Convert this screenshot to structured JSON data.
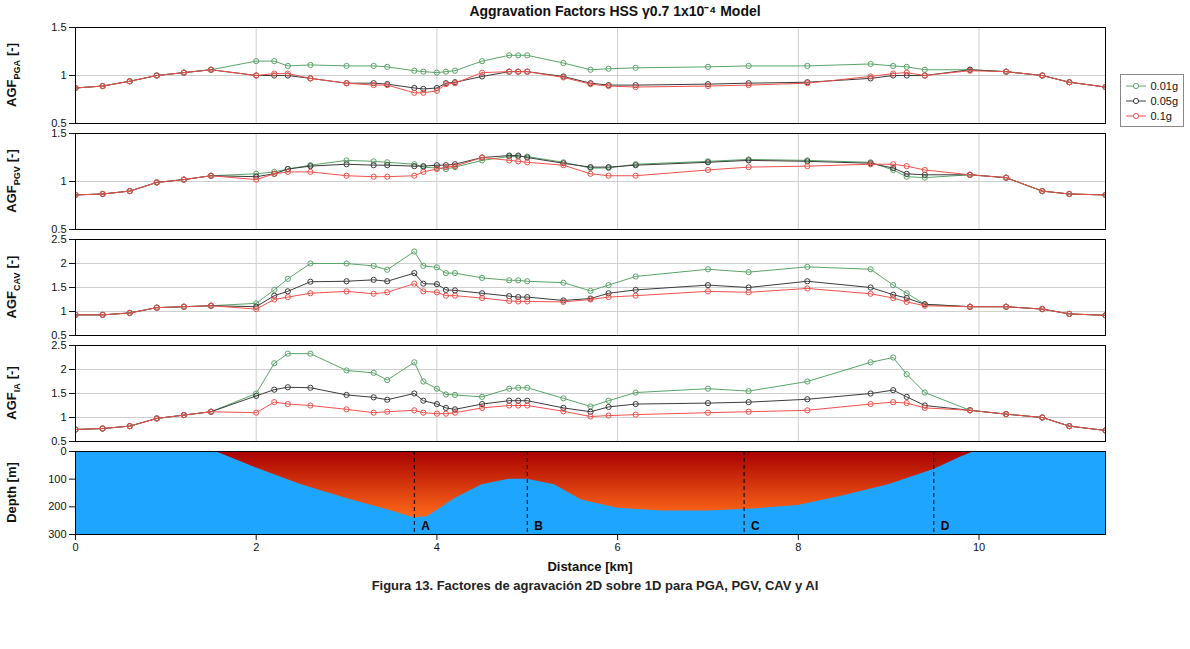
{
  "title": "Aggravation Factors HSS γ0.7 1x10⁻⁴ Model",
  "caption": "Figura 13. Factores de agravación 2D sobre 1D para PGA, PGV, CAV y AI",
  "chart_data": [
    {
      "type": "line",
      "ylabel": {
        "text": "AGF",
        "subscript": "PGA",
        "unit": "[-]"
      },
      "x": [
        0,
        0.3,
        0.6,
        0.9,
        1.2,
        1.5,
        2.0,
        2.2,
        2.35,
        2.6,
        3.0,
        3.3,
        3.45,
        3.75,
        3.85,
        4.0,
        4.1,
        4.2,
        4.5,
        4.8,
        4.9,
        5.0,
        5.4,
        5.7,
        5.9,
        6.2,
        7.0,
        7.45,
        8.1,
        8.8,
        9.05,
        9.2,
        9.4,
        9.9,
        10.3,
        10.7,
        11.0,
        11.4
      ],
      "series": [
        {
          "name": "0.01g",
          "color": "#5aa469",
          "marker": "circle",
          "values": [
            0.87,
            0.89,
            0.94,
            1.0,
            1.03,
            1.06,
            1.15,
            1.15,
            1.1,
            1.11,
            1.1,
            1.1,
            1.09,
            1.05,
            1.04,
            1.03,
            1.04,
            1.05,
            1.15,
            1.21,
            1.21,
            1.21,
            1.13,
            1.06,
            1.07,
            1.08,
            1.09,
            1.1,
            1.1,
            1.12,
            1.1,
            1.09,
            1.06,
            1.06,
            1.04,
            1.0,
            0.93,
            0.88
          ]
        },
        {
          "name": "0.05g",
          "color": "#3c3c3c",
          "marker": "circle",
          "values": [
            0.87,
            0.89,
            0.94,
            1.0,
            1.03,
            1.06,
            1.0,
            1.0,
            1.0,
            0.97,
            0.92,
            0.92,
            0.91,
            0.87,
            0.86,
            0.87,
            0.92,
            0.93,
            0.99,
            1.04,
            1.04,
            1.04,
            0.99,
            0.92,
            0.9,
            0.9,
            0.91,
            0.92,
            0.93,
            0.97,
            1.0,
            1.0,
            1.0,
            1.06,
            1.04,
            1.0,
            0.93,
            0.88
          ]
        },
        {
          "name": "0.1g",
          "color": "#f0504a",
          "marker": "circle",
          "values": [
            0.87,
            0.89,
            0.94,
            1.0,
            1.03,
            1.06,
            1.0,
            1.02,
            1.02,
            0.97,
            0.92,
            0.9,
            0.9,
            0.82,
            0.82,
            0.84,
            0.91,
            0.92,
            1.03,
            1.04,
            1.04,
            1.04,
            0.98,
            0.91,
            0.89,
            0.88,
            0.89,
            0.9,
            0.92,
            0.99,
            1.02,
            1.03,
            1.0,
            1.05,
            1.04,
            1.0,
            0.93,
            0.88
          ]
        }
      ],
      "xlim": [
        0,
        11.4
      ],
      "xticks": [
        0,
        2,
        4,
        6,
        8,
        10
      ],
      "ylim": [
        0.5,
        1.5
      ],
      "yticks": [
        0.5,
        1,
        1.5
      ],
      "grid": true,
      "tick_labels": "y",
      "legend": "right"
    },
    {
      "type": "line",
      "ylabel": {
        "text": "AGF",
        "subscript": "PGV",
        "unit": "[-]"
      },
      "x": [
        0,
        0.3,
        0.6,
        0.9,
        1.2,
        1.5,
        2.0,
        2.2,
        2.35,
        2.6,
        3.0,
        3.3,
        3.45,
        3.75,
        3.85,
        4.0,
        4.1,
        4.2,
        4.5,
        4.8,
        4.9,
        5.0,
        5.4,
        5.7,
        5.9,
        6.2,
        7.0,
        7.45,
        8.1,
        8.8,
        9.05,
        9.2,
        9.4,
        9.9,
        10.3,
        10.7,
        11.0,
        11.4
      ],
      "series": [
        {
          "name": "0.01g",
          "color": "#5aa469",
          "marker": "circle",
          "values": [
            0.86,
            0.87,
            0.9,
            0.99,
            1.02,
            1.06,
            1.08,
            1.1,
            1.13,
            1.17,
            1.22,
            1.21,
            1.2,
            1.18,
            1.15,
            1.14,
            1.13,
            1.15,
            1.22,
            1.26,
            1.26,
            1.26,
            1.2,
            1.14,
            1.14,
            1.18,
            1.21,
            1.23,
            1.22,
            1.2,
            1.12,
            1.05,
            1.04,
            1.07,
            1.04,
            0.9,
            0.87,
            0.86
          ]
        },
        {
          "name": "0.05g",
          "color": "#3c3c3c",
          "marker": "circle",
          "values": [
            0.86,
            0.87,
            0.9,
            0.99,
            1.02,
            1.06,
            1.05,
            1.08,
            1.13,
            1.16,
            1.18,
            1.17,
            1.17,
            1.16,
            1.16,
            1.17,
            1.17,
            1.18,
            1.25,
            1.27,
            1.27,
            1.25,
            1.19,
            1.15,
            1.15,
            1.17,
            1.2,
            1.22,
            1.21,
            1.19,
            1.14,
            1.08,
            1.07,
            1.07,
            1.04,
            0.9,
            0.87,
            0.86
          ]
        },
        {
          "name": "0.1g",
          "color": "#f0504a",
          "marker": "circle",
          "values": [
            0.86,
            0.87,
            0.9,
            0.99,
            1.02,
            1.06,
            1.02,
            1.08,
            1.1,
            1.1,
            1.06,
            1.05,
            1.05,
            1.06,
            1.1,
            1.13,
            1.15,
            1.16,
            1.25,
            1.22,
            1.21,
            1.2,
            1.17,
            1.08,
            1.06,
            1.06,
            1.12,
            1.15,
            1.16,
            1.18,
            1.18,
            1.16,
            1.12,
            1.07,
            1.04,
            0.9,
            0.87,
            0.86
          ]
        }
      ],
      "xlim": [
        0,
        11.4
      ],
      "xticks": [
        0,
        2,
        4,
        6,
        8,
        10
      ],
      "ylim": [
        0.5,
        1.5
      ],
      "yticks": [
        0.5,
        1,
        1.5
      ],
      "grid": true,
      "tick_labels": "y"
    },
    {
      "type": "line",
      "ylabel": {
        "text": "AGF",
        "subscript": "CAV",
        "unit": "[-]"
      },
      "x": [
        0,
        0.3,
        0.6,
        0.9,
        1.2,
        1.5,
        2.0,
        2.2,
        2.35,
        2.6,
        3.0,
        3.3,
        3.45,
        3.75,
        3.85,
        4.0,
        4.1,
        4.2,
        4.5,
        4.8,
        4.9,
        5.0,
        5.4,
        5.7,
        5.9,
        6.2,
        7.0,
        7.45,
        8.1,
        8.8,
        9.05,
        9.2,
        9.4,
        9.9,
        10.3,
        10.7,
        11.0,
        11.4
      ],
      "series": [
        {
          "name": "0.01g",
          "color": "#5aa469",
          "marker": "circle",
          "values": [
            0.93,
            0.93,
            0.97,
            1.08,
            1.1,
            1.12,
            1.17,
            1.45,
            1.68,
            2.0,
            2.0,
            1.95,
            1.87,
            2.25,
            1.95,
            1.92,
            1.8,
            1.8,
            1.7,
            1.65,
            1.65,
            1.63,
            1.6,
            1.43,
            1.55,
            1.73,
            1.88,
            1.82,
            1.93,
            1.88,
            1.55,
            1.38,
            1.15,
            1.1,
            1.1,
            1.05,
            0.95,
            0.92
          ]
        },
        {
          "name": "0.05g",
          "color": "#3c3c3c",
          "marker": "circle",
          "values": [
            0.93,
            0.93,
            0.97,
            1.08,
            1.1,
            1.12,
            1.1,
            1.33,
            1.42,
            1.62,
            1.63,
            1.66,
            1.63,
            1.8,
            1.58,
            1.57,
            1.45,
            1.44,
            1.38,
            1.32,
            1.3,
            1.3,
            1.23,
            1.27,
            1.38,
            1.45,
            1.55,
            1.5,
            1.63,
            1.5,
            1.35,
            1.28,
            1.15,
            1.1,
            1.1,
            1.05,
            0.95,
            0.92
          ]
        },
        {
          "name": "0.1g",
          "color": "#f0504a",
          "marker": "circle",
          "values": [
            0.93,
            0.93,
            0.97,
            1.08,
            1.1,
            1.12,
            1.05,
            1.25,
            1.3,
            1.38,
            1.42,
            1.37,
            1.4,
            1.58,
            1.42,
            1.4,
            1.33,
            1.33,
            1.28,
            1.22,
            1.21,
            1.21,
            1.2,
            1.25,
            1.3,
            1.33,
            1.42,
            1.4,
            1.48,
            1.37,
            1.28,
            1.2,
            1.12,
            1.1,
            1.1,
            1.05,
            0.95,
            0.92
          ]
        }
      ],
      "xlim": [
        0,
        11.4
      ],
      "xticks": [
        0,
        2,
        4,
        6,
        8,
        10
      ],
      "ylim": [
        0.5,
        2.5
      ],
      "yticks": [
        0.5,
        1,
        1.5,
        2,
        2.5
      ],
      "grid": true,
      "tick_labels": "y"
    },
    {
      "type": "line",
      "ylabel": {
        "text": "AGF",
        "subscript": "IA",
        "unit": "[-]"
      },
      "x": [
        0,
        0.3,
        0.6,
        0.9,
        1.2,
        1.5,
        2.0,
        2.2,
        2.35,
        2.6,
        3.0,
        3.3,
        3.45,
        3.75,
        3.85,
        4.0,
        4.1,
        4.2,
        4.5,
        4.8,
        4.9,
        5.0,
        5.4,
        5.7,
        5.9,
        6.2,
        7.0,
        7.45,
        8.1,
        8.8,
        9.05,
        9.2,
        9.4,
        9.9,
        10.3,
        10.7,
        11.0,
        11.4
      ],
      "series": [
        {
          "name": "0.01g",
          "color": "#5aa469",
          "marker": "circle",
          "values": [
            0.75,
            0.77,
            0.82,
            0.98,
            1.05,
            1.12,
            1.5,
            2.13,
            2.33,
            2.33,
            1.98,
            1.93,
            1.78,
            2.15,
            1.75,
            1.6,
            1.48,
            1.47,
            1.43,
            1.6,
            1.62,
            1.62,
            1.4,
            1.23,
            1.35,
            1.52,
            1.6,
            1.55,
            1.75,
            2.15,
            2.25,
            1.9,
            1.52,
            1.15,
            1.07,
            1.0,
            0.82,
            0.73
          ]
        },
        {
          "name": "0.05g",
          "color": "#3c3c3c",
          "marker": "circle",
          "values": [
            0.75,
            0.77,
            0.82,
            0.98,
            1.05,
            1.12,
            1.45,
            1.58,
            1.63,
            1.62,
            1.47,
            1.42,
            1.37,
            1.5,
            1.35,
            1.28,
            1.2,
            1.17,
            1.28,
            1.35,
            1.35,
            1.35,
            1.2,
            1.12,
            1.22,
            1.28,
            1.3,
            1.32,
            1.38,
            1.5,
            1.57,
            1.43,
            1.25,
            1.15,
            1.07,
            1.0,
            0.82,
            0.73
          ]
        },
        {
          "name": "0.1g",
          "color": "#f0504a",
          "marker": "circle",
          "values": [
            0.75,
            0.77,
            0.82,
            0.98,
            1.05,
            1.12,
            1.1,
            1.32,
            1.28,
            1.25,
            1.17,
            1.1,
            1.12,
            1.15,
            1.1,
            1.08,
            1.08,
            1.1,
            1.2,
            1.25,
            1.25,
            1.25,
            1.13,
            1.02,
            1.04,
            1.06,
            1.1,
            1.12,
            1.15,
            1.28,
            1.32,
            1.3,
            1.2,
            1.15,
            1.07,
            1.0,
            0.82,
            0.73
          ]
        }
      ],
      "xlim": [
        0,
        11.4
      ],
      "xticks": [
        0,
        2,
        4,
        6,
        8,
        10
      ],
      "ylim": [
        0.5,
        2.5
      ],
      "yticks": [
        0.5,
        1,
        1.5,
        2,
        2.5
      ],
      "grid": true,
      "tick_labels": "y"
    },
    {
      "type": "area",
      "ylabel": "Depth [m]",
      "xlabel": "Distance [km]",
      "x": [
        1.55,
        2.0,
        2.5,
        3.0,
        3.5,
        3.75,
        3.9,
        4.2,
        4.5,
        4.8,
        5.0,
        5.3,
        5.6,
        6.0,
        6.5,
        7.0,
        7.5,
        8.0,
        8.5,
        9.0,
        9.5,
        9.8,
        9.95
      ],
      "values": [
        0,
        60,
        120,
        170,
        215,
        240,
        235,
        170,
        120,
        100,
        100,
        120,
        175,
        205,
        215,
        215,
        208,
        195,
        160,
        120,
        65,
        20,
        0
      ],
      "colors": [
        "#a80000",
        "#ff6a1a",
        "#1ea6ff"
      ],
      "annotations": [
        {
          "x": 3.75,
          "label": "A"
        },
        {
          "x": 5.0,
          "label": "B"
        },
        {
          "x": 7.4,
          "label": "C"
        },
        {
          "x": 9.5,
          "label": "D"
        }
      ],
      "xlim": [
        0,
        11.4
      ],
      "xticks": [
        0,
        2,
        4,
        6,
        8,
        10
      ],
      "ylim": [
        300,
        0
      ],
      "yticks": [
        0,
        100,
        200,
        300
      ],
      "grid": false
    }
  ]
}
